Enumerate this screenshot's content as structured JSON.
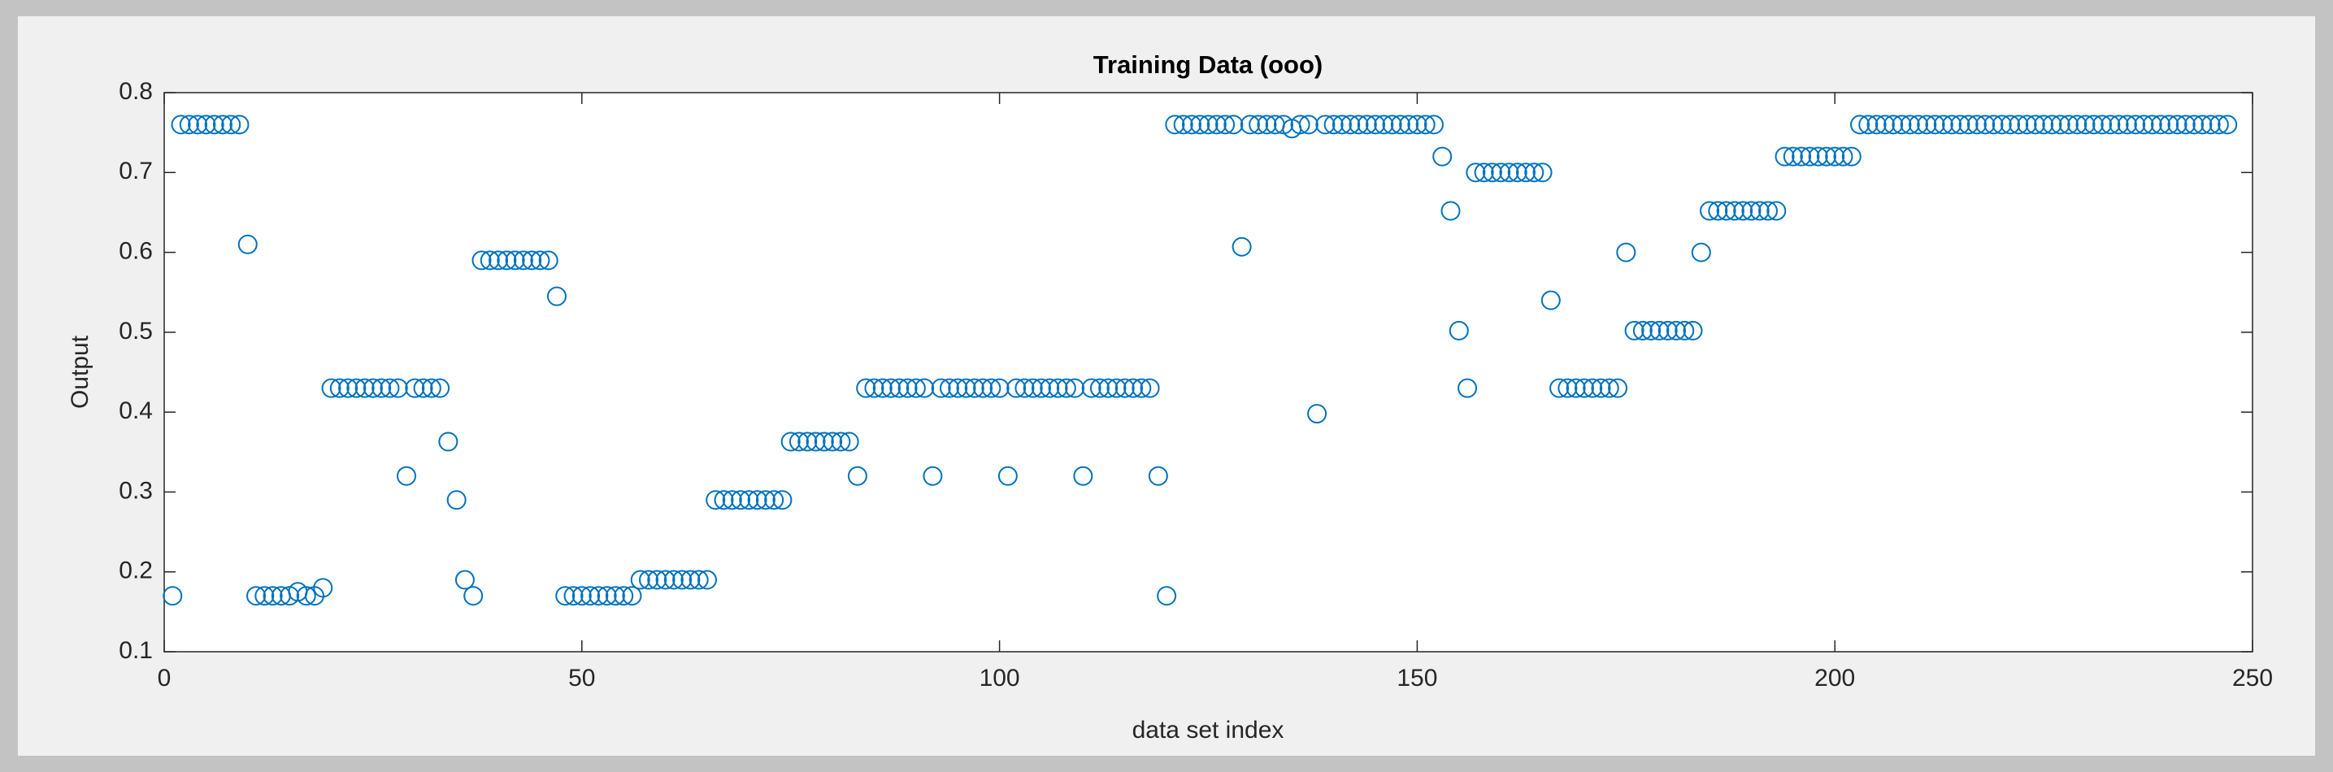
{
  "chart_data": {
    "type": "scatter",
    "title": "Training Data (ooo)",
    "xlabel": "data set index",
    "ylabel": "Output",
    "x": [
      1,
      2,
      3,
      4,
      5,
      6,
      7,
      8,
      9,
      10,
      11,
      12,
      13,
      14,
      15,
      16,
      17,
      18,
      19,
      20,
      21,
      22,
      23,
      24,
      25,
      26,
      27,
      28,
      29,
      30,
      31,
      32,
      33,
      34,
      35,
      36,
      37,
      38,
      39,
      40,
      41,
      42,
      43,
      44,
      45,
      46,
      47,
      48,
      49,
      50,
      51,
      52,
      53,
      54,
      55,
      56,
      57,
      58,
      59,
      60,
      61,
      62,
      63,
      64,
      65,
      66,
      67,
      68,
      69,
      70,
      71,
      72,
      73,
      74,
      75,
      76,
      77,
      78,
      79,
      80,
      81,
      82,
      83,
      84,
      85,
      86,
      87,
      88,
      89,
      90,
      91,
      92,
      93,
      94,
      95,
      96,
      97,
      98,
      99,
      100,
      101,
      102,
      103,
      104,
      105,
      106,
      107,
      108,
      109,
      110,
      111,
      112,
      113,
      114,
      115,
      116,
      117,
      118,
      119,
      120,
      121,
      122,
      123,
      124,
      125,
      126,
      127,
      128,
      129,
      130,
      131,
      132,
      133,
      134,
      135,
      136,
      137,
      138,
      139,
      140,
      141,
      142,
      143,
      144,
      145,
      146,
      147,
      148,
      149,
      150,
      151,
      152,
      153,
      154,
      155,
      156,
      157,
      158,
      159,
      160,
      161,
      162,
      163,
      164,
      165,
      166,
      167,
      168,
      169,
      170,
      171,
      172,
      173,
      174,
      175,
      176,
      177,
      178,
      179,
      180,
      181,
      182,
      183,
      184,
      185,
      186,
      187,
      188,
      189,
      190,
      191,
      192,
      193,
      194,
      195,
      196,
      197,
      198,
      199,
      200,
      201,
      202,
      203,
      204,
      205,
      206,
      207,
      208,
      209,
      210,
      211,
      212,
      213,
      214,
      215,
      216,
      217,
      218,
      219,
      220,
      221,
      222,
      223,
      224,
      225,
      226,
      227,
      228,
      229,
      230,
      231,
      232,
      233,
      234,
      235,
      236,
      237,
      238,
      239,
      240,
      241,
      242,
      243,
      244,
      245,
      246,
      247
    ],
    "series": [
      {
        "color": "#0072bd",
        "values": [
          0.17,
          0.76,
          0.76,
          0.76,
          0.76,
          0.76,
          0.76,
          0.76,
          0.76,
          0.61,
          0.17,
          0.17,
          0.17,
          0.17,
          0.17,
          0.175,
          0.17,
          0.17,
          0.18,
          0.43,
          0.43,
          0.43,
          0.43,
          0.43,
          0.43,
          0.43,
          0.43,
          0.43,
          0.32,
          0.43,
          0.43,
          0.43,
          0.43,
          0.363,
          0.29,
          0.19,
          0.17,
          0.59,
          0.59,
          0.59,
          0.59,
          0.59,
          0.59,
          0.59,
          0.59,
          0.59,
          0.545,
          0.17,
          0.17,
          0.17,
          0.17,
          0.17,
          0.17,
          0.17,
          0.17,
          0.17,
          0.19,
          0.19,
          0.19,
          0.19,
          0.19,
          0.19,
          0.19,
          0.19,
          0.19,
          0.29,
          0.29,
          0.29,
          0.29,
          0.29,
          0.29,
          0.29,
          0.29,
          0.29,
          0.363,
          0.363,
          0.363,
          0.363,
          0.363,
          0.363,
          0.363,
          0.363,
          0.32,
          0.43,
          0.43,
          0.43,
          0.43,
          0.43,
          0.43,
          0.43,
          0.43,
          0.32,
          0.43,
          0.43,
          0.43,
          0.43,
          0.43,
          0.43,
          0.43,
          0.43,
          0.32,
          0.43,
          0.43,
          0.43,
          0.43,
          0.43,
          0.43,
          0.43,
          0.43,
          0.32,
          0.43,
          0.43,
          0.43,
          0.43,
          0.43,
          0.43,
          0.43,
          0.43,
          0.32,
          0.17,
          0.76,
          0.76,
          0.76,
          0.76,
          0.76,
          0.76,
          0.76,
          0.76,
          0.607,
          0.76,
          0.76,
          0.76,
          0.76,
          0.76,
          0.755,
          0.76,
          0.76,
          0.398,
          0.76,
          0.76,
          0.76,
          0.76,
          0.76,
          0.76,
          0.76,
          0.76,
          0.76,
          0.76,
          0.76,
          0.76,
          0.76,
          0.76,
          0.72,
          0.652,
          0.502,
          0.43,
          0.7,
          0.7,
          0.7,
          0.7,
          0.7,
          0.7,
          0.7,
          0.7,
          0.7,
          0.54,
          0.43,
          0.43,
          0.43,
          0.43,
          0.43,
          0.43,
          0.43,
          0.43,
          0.6,
          0.502,
          0.502,
          0.502,
          0.502,
          0.502,
          0.502,
          0.502,
          0.502,
          0.6,
          0.652,
          0.652,
          0.652,
          0.652,
          0.652,
          0.652,
          0.652,
          0.652,
          0.652,
          0.72,
          0.72,
          0.72,
          0.72,
          0.72,
          0.72,
          0.72,
          0.72,
          0.72,
          0.76,
          0.76,
          0.76,
          0.76,
          0.76,
          0.76,
          0.76,
          0.76,
          0.76,
          0.76,
          0.76,
          0.76,
          0.76,
          0.76,
          0.76,
          0.76,
          0.76,
          0.76,
          0.76,
          0.76,
          0.76,
          0.76,
          0.76,
          0.76,
          0.76,
          0.76,
          0.76,
          0.76,
          0.76,
          0.76,
          0.76,
          0.76,
          0.76,
          0.76,
          0.76,
          0.76,
          0.76,
          0.76,
          0.76,
          0.76,
          0.76,
          0.76,
          0.76,
          0.76,
          0.76
        ]
      }
    ],
    "xlim": [
      0,
      250
    ],
    "xticks": [
      0,
      50,
      100,
      150,
      200,
      250
    ],
    "ylim": [
      0.1,
      0.8
    ],
    "yticks": [
      0.1,
      0.2,
      0.3,
      0.4,
      0.5,
      0.6,
      0.7,
      0.8
    ],
    "grid": false
  }
}
